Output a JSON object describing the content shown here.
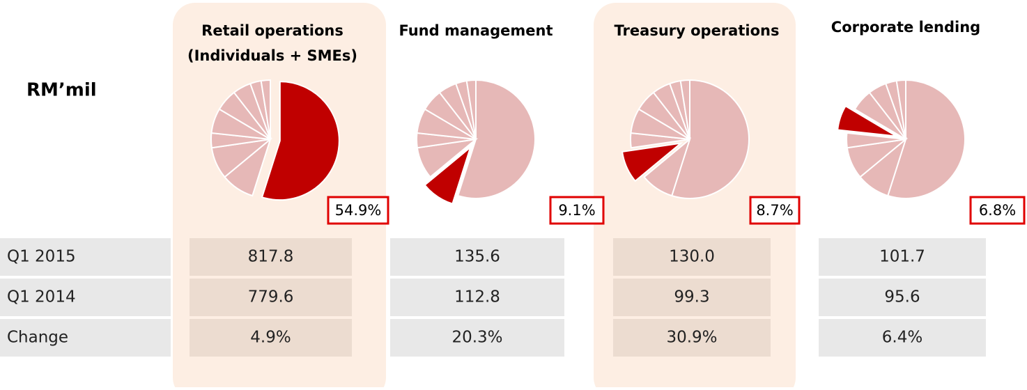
{
  "unit_label": "RM’mil",
  "chart_data": [
    {
      "type": "pie",
      "title": [
        "Retail operations",
        "(Individuals + SMEs)"
      ],
      "values": [
        54.9,
        9.1,
        8.7,
        4.0,
        6.8,
        6.0,
        5.0,
        3.0,
        2.5
      ],
      "highlight": 0,
      "highlight_label": "54.9%",
      "color": "#e6b8b7",
      "highlight_color": "#c00000"
    },
    {
      "type": "pie",
      "title": [
        "Fund management"
      ],
      "values": [
        54.9,
        9.1,
        8.7,
        4.0,
        6.8,
        6.0,
        5.0,
        3.0,
        2.5
      ],
      "highlight": 1,
      "highlight_label": "9.1%",
      "color": "#e6b8b7",
      "highlight_color": "#c00000"
    },
    {
      "type": "pie",
      "title": [
        "Treasury operations"
      ],
      "values": [
        54.9,
        9.1,
        8.7,
        4.0,
        6.8,
        6.0,
        5.0,
        3.0,
        2.5
      ],
      "highlight": 2,
      "highlight_label": "8.7%",
      "color": "#e6b8b7",
      "highlight_color": "#c00000"
    },
    {
      "type": "pie",
      "title": [
        "Corporate lending"
      ],
      "values": [
        54.9,
        9.1,
        8.7,
        4.0,
        6.8,
        6.0,
        5.0,
        3.0,
        2.5
      ],
      "highlight": 4,
      "highlight_label": "6.8%",
      "color": "#e6b8b7",
      "highlight_color": "#c00000"
    }
  ],
  "table": {
    "rows": [
      [
        "Q1 2015",
        "817.8",
        "135.6",
        "130.0",
        "101.7"
      ],
      [
        "Q1 2014",
        "779.6",
        "112.8",
        "99.3",
        "95.6"
      ],
      [
        "Change",
        "4.9%",
        "20.3%",
        "30.9%",
        "6.4%"
      ]
    ]
  }
}
